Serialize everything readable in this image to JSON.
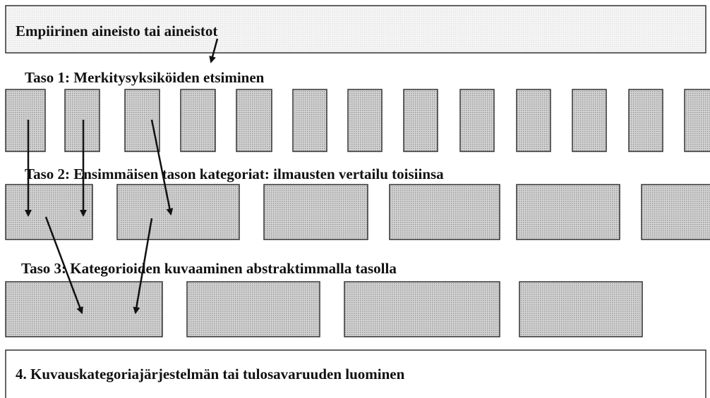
{
  "header": {
    "title": "Empiirinen aineisto tai aineistot"
  },
  "levels": [
    {
      "label": "Taso 1: Merkitysyksiköiden etsiminen"
    },
    {
      "label": "Taso 2: Ensimmäisen tason kategoriat: ilmausten vertailu toisiinsa"
    },
    {
      "label": "Taso 3: Kategorioiden kuvaaminen abstraktimmalla tasolla"
    }
  ],
  "footer": {
    "title": "4. Kuvauskategoriajärjestelmän tai tulosavaruuden luominen"
  }
}
